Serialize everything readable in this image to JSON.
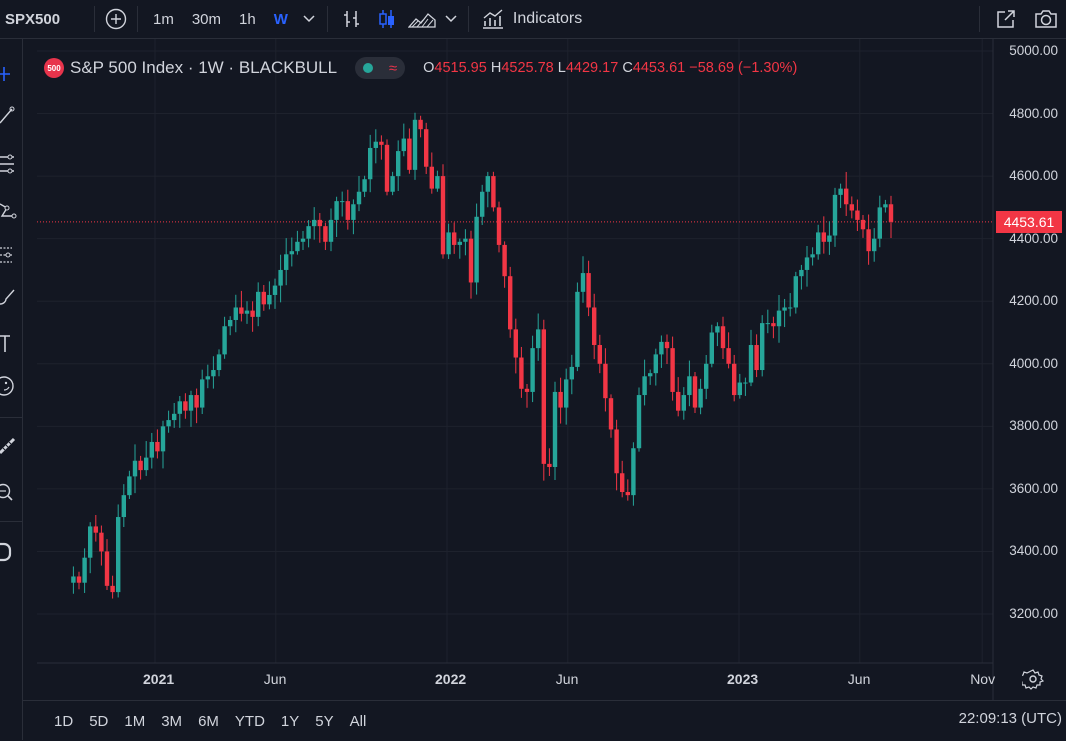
{
  "toolbar": {
    "symbol": "SPX500",
    "intervals": [
      "1m",
      "30m",
      "1h",
      "W"
    ],
    "active_interval": "W",
    "indicators_label": "Indicators"
  },
  "legend": {
    "badge": "500",
    "title": "S&P 500 Index · 1W · BLACKBULL",
    "o_label": "O",
    "o_value": "4515.95",
    "h_label": "H",
    "h_value": "4525.78",
    "l_label": "L",
    "l_value": "4429.17",
    "c_label": "C",
    "c_value": "4453.61",
    "change": "−58.69 (−1.30%)"
  },
  "current_price_label": "4453.61",
  "colors": {
    "background": "#131722",
    "up": "#26a69a",
    "down": "#f23645",
    "grid": "#1e222d",
    "accent": "#2962ff"
  },
  "bottom": {
    "ranges": [
      "1D",
      "5D",
      "1M",
      "3M",
      "6M",
      "YTD",
      "1Y",
      "5Y",
      "All"
    ],
    "clock": "22:09:13 (UTC)"
  },
  "chart_data": {
    "type": "candlestick",
    "title": "S&P 500 Index · 1W · BLACKBULL",
    "interval": "1W",
    "x_start": "2020-09-21",
    "y_ticks": [
      "3200.00",
      "3400.00",
      "3600.00",
      "3800.00",
      "4000.00",
      "4200.00",
      "4400.00",
      "4600.00",
      "4800.00",
      "5000.00"
    ],
    "ylim": [
      3050,
      5020
    ],
    "x_ticks": [
      "2021",
      "Jun",
      "2022",
      "Jun",
      "2023",
      "Jun",
      "Nov"
    ],
    "x_tick_dates": [
      "2021-01-01",
      "2021-06-01",
      "2022-01-01",
      "2022-06-01",
      "2023-01-01",
      "2023-06-01",
      "2023-11-01"
    ],
    "current_price": 4453.61,
    "grid": true,
    "closes": [
      3320,
      3300,
      3380,
      3480,
      3460,
      3400,
      3290,
      3270,
      3510,
      3580,
      3640,
      3690,
      3660,
      3700,
      3750,
      3720,
      3800,
      3820,
      3840,
      3880,
      3850,
      3900,
      3860,
      3950,
      3960,
      3980,
      4030,
      4120,
      4140,
      4180,
      4160,
      4170,
      4150,
      4230,
      4190,
      4220,
      4250,
      4300,
      4350,
      4360,
      4390,
      4400,
      4440,
      4460,
      4440,
      4390,
      4460,
      4520,
      4520,
      4460,
      4510,
      4550,
      4590,
      4690,
      4710,
      4700,
      4550,
      4600,
      4680,
      4720,
      4620,
      4780,
      4750,
      4630,
      4560,
      4600,
      4350,
      4420,
      4380,
      4390,
      4400,
      4260,
      4470,
      4550,
      4600,
      4500,
      4380,
      4280,
      4110,
      4020,
      3920,
      3910,
      4050,
      4110,
      3680,
      3670,
      3910,
      3860,
      3950,
      3990,
      4230,
      4290,
      4180,
      4060,
      4000,
      3890,
      3790,
      3650,
      3590,
      3580,
      3730,
      3900,
      3960,
      3970,
      4030,
      4070,
      4050,
      3910,
      3850,
      3900,
      3960,
      3860,
      3920,
      4000,
      4100,
      4120,
      4050,
      4000,
      3900,
      3940,
      3940,
      4060,
      3980,
      4130,
      4130,
      4120,
      4170,
      4180,
      4180,
      4280,
      4300,
      4340,
      4350,
      4420,
      4390,
      4410,
      4540,
      4560,
      4510,
      4490,
      4460,
      4430,
      4360,
      4400,
      4500,
      4510,
      4453.61
    ]
  }
}
